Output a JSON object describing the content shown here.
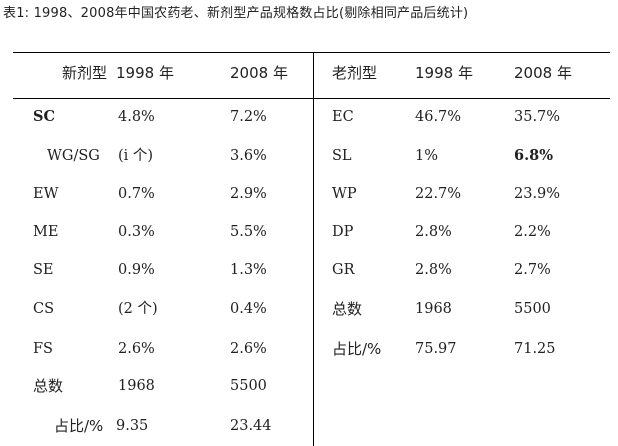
{
  "caption": "表1:  1998、2008年中国农药老、新剂型产品规格数占比(剔除相同产品后统计)",
  "left_table": {
    "headers": [
      "新剂型",
      "1998 年",
      "2008 年"
    ],
    "rows": [
      [
        "SC",
        "4.8%",
        "7.2%"
      ],
      [
        "WG/SG",
        "(i 个)",
        "3.6%"
      ],
      [
        "EW",
        "0.7%",
        "2.9%"
      ],
      [
        "ME",
        "0.3%",
        "5.5%"
      ],
      [
        "SE",
        "0.9%",
        "1.3%"
      ],
      [
        "CS",
        "(2 个)",
        "0.4%"
      ],
      [
        "FS",
        "2.6%",
        "2.6%"
      ],
      [
        "总数",
        "1968",
        "5500"
      ],
      [
        "占比/%",
        "9.35",
        "23.44"
      ]
    ]
  },
  "right_table": {
    "headers": [
      "老剂型",
      "1998 年",
      "2008 年"
    ],
    "rows": [
      [
        "EC",
        "46.7%",
        "35.7%"
      ],
      [
        "SL",
        "1%",
        "6.8%"
      ],
      [
        "WP",
        "22.7%",
        "23.9%"
      ],
      [
        "DP",
        "2.8%",
        "2.2%"
      ],
      [
        "GR",
        "2.8%",
        "2.7%"
      ],
      [
        "总数",
        "1968",
        "5500"
      ],
      [
        "占比/%",
        "75.97",
        "71.25"
      ]
    ]
  }
}
